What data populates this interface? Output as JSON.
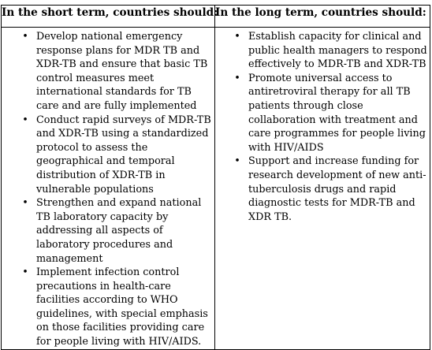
{
  "table": {
    "headers": [
      "In the short term, countries should:",
      "In the long term, countries should:"
    ],
    "short_term": [
      "Develop national emergency response plans for MDR TB and XDR-TB and ensure that basic TB control measures meet international standards for TB care and are fully implemented",
      "Conduct rapid surveys of MDR-TB and XDR-TB using a standardized protocol to assess the geographical and temporal distribution of XDR-TB in vulnerable populations",
      "Strengthen and expand national TB laboratory capacity by addressing all aspects of laboratory procedures and management",
      "Implement infection control precautions in health-care facilities according to WHO guidelines, with special emphasis on those facilities providing care for people living with HIV/AIDS."
    ],
    "long_term": [
      "Establish capacity for clinical and public health managers to respond effectively to MDR-TB and XDR-TB",
      "Promote universal access to antiretroviral therapy for all TB patients through close collaboration with treatment and care programmes for people living with HIV/AIDS",
      "Support and increase funding for research development of new anti-tuberculosis drugs and rapid diagnostic tests for MDR-TB and XDR TB."
    ],
    "bullet_glyph": "•"
  }
}
